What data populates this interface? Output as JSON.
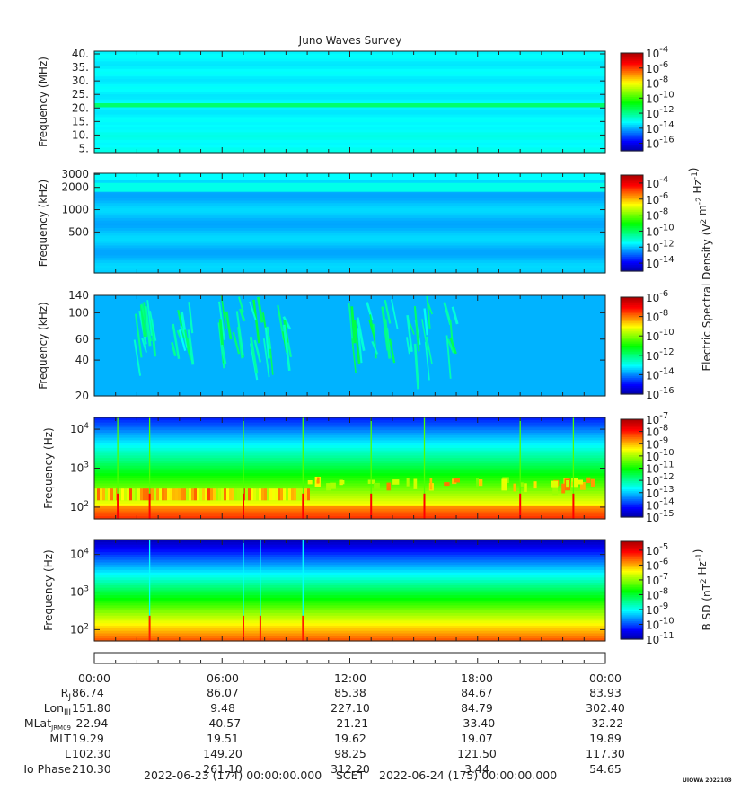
{
  "title": "Juno Waves Survey",
  "colors": {
    "colormap": [
      "#0000a0",
      "#0000ff",
      "#0080ff",
      "#00ffff",
      "#00ff80",
      "#00ff00",
      "#80ff00",
      "#ffff00",
      "#ff8000",
      "#ff0000",
      "#b00000"
    ]
  },
  "chart_data": [
    {
      "type": "heatmap",
      "panel": "HFR high",
      "ylabel": "Frequency (MHz)",
      "yscale": "linear",
      "ylim": [
        3.5,
        41
      ],
      "yticks": [
        {
          "v": 40,
          "label": "40."
        },
        {
          "v": 35,
          "label": "35."
        },
        {
          "v": 30,
          "label": "30."
        },
        {
          "v": 25,
          "label": "25."
        },
        {
          "v": 20,
          "label": "20."
        },
        {
          "v": 15,
          "label": "15."
        },
        {
          "v": 10,
          "label": "10."
        },
        {
          "v": 5,
          "label": "5."
        }
      ],
      "colorbar": {
        "scale": "log",
        "range_exp": [
          -17,
          -4
        ],
        "ticks_exp": [
          -4,
          -6,
          -8,
          -10,
          -12,
          -14,
          -16
        ]
      },
      "base_level_exp": -13.2,
      "features": [
        {
          "kind": "band",
          "center": 21.0,
          "width": 1.5,
          "level_exp": -11.6
        }
      ]
    },
    {
      "type": "heatmap",
      "panel": "HFR low",
      "ylabel": "Frequency (kHz)",
      "yscale": "log",
      "ylim": [
        140,
        3100
      ],
      "yticks": [
        {
          "v": 3000,
          "label": "3000"
        },
        {
          "v": 2000,
          "label": "2000"
        },
        {
          "v": 1000,
          "label": "1000"
        },
        {
          "v": 500,
          "label": "500"
        }
      ],
      "colorbar": {
        "scale": "log",
        "range_exp": [
          -15,
          -3
        ],
        "ticks_exp": [
          -4,
          -6,
          -8,
          -10,
          -12,
          -14
        ]
      },
      "base_level_exp": -12.0,
      "features": [
        {
          "kind": "band",
          "center": 2000,
          "width": 0.06,
          "level_exp": -11.2
        },
        {
          "kind": "band",
          "center": 2800,
          "width": 0.05,
          "level_exp": -11.4
        }
      ]
    },
    {
      "type": "heatmap",
      "panel": "LFR high",
      "ylabel": "Frequency (kHz)",
      "yscale": "log",
      "ylim": [
        20,
        140
      ],
      "yticks": [
        {
          "v": 140,
          "label": "140"
        },
        {
          "v": 100,
          "label": "100"
        },
        {
          "v": 60,
          "label": "60"
        },
        {
          "v": 40,
          "label": "40"
        },
        {
          "v": 20,
          "label": "20"
        }
      ],
      "colorbar": {
        "scale": "log",
        "range_exp": [
          -16,
          -6
        ],
        "ticks_exp": [
          -6,
          -8,
          -10,
          -12,
          -14,
          -16
        ]
      },
      "base_level_exp": -13.6,
      "features": [
        {
          "kind": "bursts",
          "hours": [
            1.8,
            2.2,
            3.6,
            4.1,
            5.8,
            6.4,
            7.2,
            7.8,
            8.5,
            11.9,
            12.8,
            13.5,
            14.6,
            15.2,
            16.4
          ]
        }
      ]
    },
    {
      "type": "heatmap",
      "panel": "LFR low",
      "ylabel": "Frequency (Hz)",
      "yscale": "log",
      "ylim": [
        50,
        20000
      ],
      "yticks": [
        {
          "v": 10000,
          "label": "10^4"
        },
        {
          "v": 1000,
          "label": "10^3"
        },
        {
          "v": 100,
          "label": "10^2"
        }
      ],
      "colorbar": {
        "scale": "log",
        "range_exp": [
          -15,
          -7
        ],
        "ticks_exp": [
          -7,
          -8,
          -9,
          -10,
          -11,
          -12,
          -13,
          -14,
          -15
        ]
      },
      "base_level_exp": -11.0,
      "features": [
        {
          "kind": "hot_band",
          "fmin": 150,
          "fmax": 300,
          "hours": [
            0,
            10
          ]
        },
        {
          "kind": "spikes",
          "hours": [
            1.1,
            2.6,
            7.0,
            9.8,
            13.0,
            15.5,
            20.0,
            22.5
          ]
        }
      ]
    },
    {
      "type": "heatmap",
      "panel": "B SD",
      "ylabel": "Frequency (Hz)",
      "yscale": "log",
      "ylim": [
        50,
        25000
      ],
      "yticks": [
        {
          "v": 10000,
          "label": "10^4"
        },
        {
          "v": 1000,
          "label": "10^3"
        },
        {
          "v": 100,
          "label": "10^2"
        }
      ],
      "colorbar": {
        "scale": "log",
        "range_exp": [
          -11,
          -4.4
        ],
        "ticks_exp": [
          -5,
          -6,
          -7,
          -8,
          -9,
          -10,
          -11
        ]
      },
      "base_level_exp": -9.5,
      "features": [
        {
          "kind": "spikes",
          "hours": [
            2.6,
            7.0,
            7.8,
            9.8
          ]
        }
      ]
    }
  ],
  "colorbar_labels": {
    "electric": "Electric Spectral Density (V^2 m^-2 Hz^-1)",
    "magnetic": "B SD (nT^2 Hz^-1)"
  },
  "time_axis": {
    "ticks": [
      "00:00",
      "06:00",
      "12:00",
      "18:00",
      "00:00"
    ],
    "rows": [
      {
        "label": "R",
        "sub": "J",
        "values": [
          "86.74",
          "86.07",
          "85.38",
          "84.67",
          "83.93"
        ]
      },
      {
        "label": "Lon",
        "sub": "III",
        "values": [
          "151.80",
          "9.48",
          "227.10",
          "84.79",
          "302.40"
        ]
      },
      {
        "label": "MLat",
        "sub": "JRM09",
        "values": [
          "-22.94",
          "-40.57",
          "-21.21",
          "-33.40",
          "-32.22"
        ]
      },
      {
        "label": "MLT",
        "sub": "",
        "values": [
          "19.29",
          "19.51",
          "19.62",
          "19.07",
          "19.89"
        ]
      },
      {
        "label": "L",
        "sub": "",
        "values": [
          "102.30",
          "149.20",
          "98.25",
          "121.50",
          "117.30"
        ]
      },
      {
        "label": "Io Phase",
        "sub": "",
        "values": [
          "210.30",
          "261.10",
          "312.20",
          "3.44",
          "54.65"
        ]
      }
    ],
    "footer": {
      "start": "2022-06-23 (174) 00:00:00.000",
      "frame": "SCET",
      "end": "2022-06-24 (175) 00:00:00.000"
    },
    "stamp": "UIOWA 20221030"
  }
}
